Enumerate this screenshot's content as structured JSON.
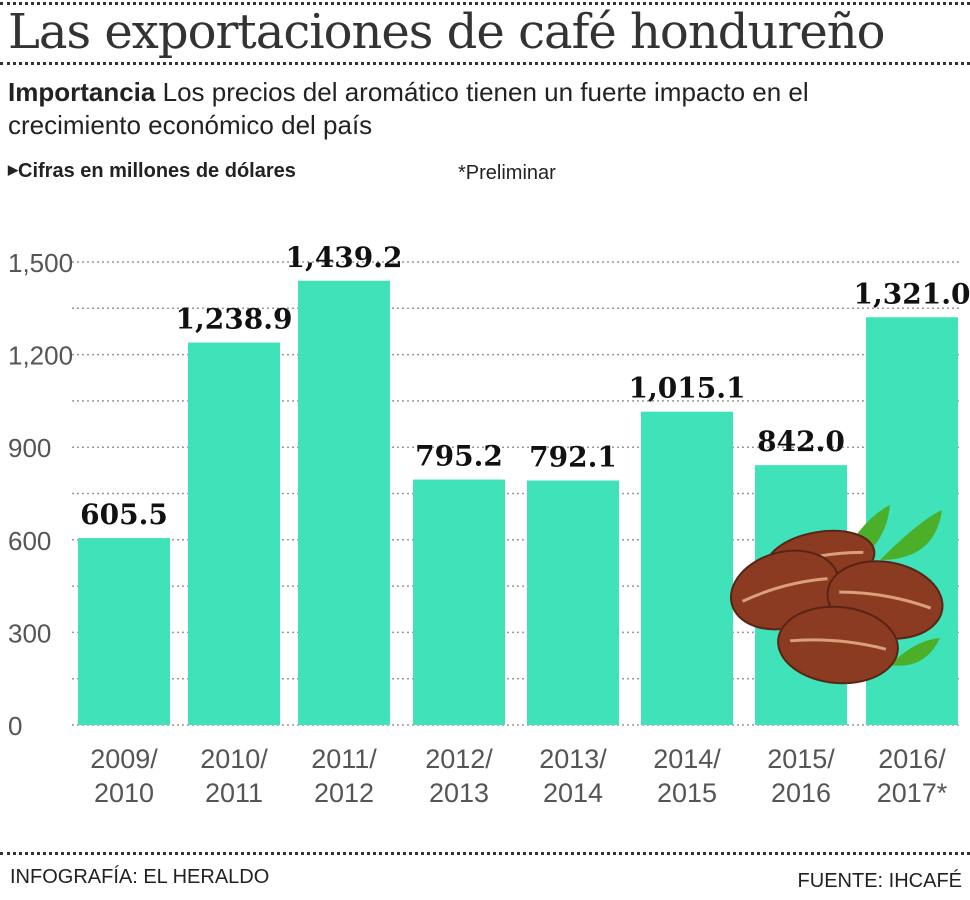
{
  "title": "Las exportaciones de café hondureño",
  "subtitle_bold": "Importancia",
  "subtitle": "Los precios del aromático tienen  un fuerte impacto en el crecimiento económico del país",
  "unit_note": "Cifras en millones de dólares",
  "preliminary_note": "*Preliminar",
  "credit": "INFOGRAFÍA: EL HERALDO",
  "source": "FUENTE: IHCAFÉ",
  "colors": {
    "bar": "#3fe2b9",
    "text": "#222222",
    "axis_text": "#555555"
  },
  "chart_data": {
    "type": "bar",
    "categories": [
      [
        "2009/",
        "2010"
      ],
      [
        "2010/",
        "2011"
      ],
      [
        "2011/",
        "2012"
      ],
      [
        "2012/",
        "2013"
      ],
      [
        "2013/",
        "2014"
      ],
      [
        "2014/",
        "2015"
      ],
      [
        "2015/",
        "2016"
      ],
      [
        "2016/",
        "2017*"
      ]
    ],
    "values": [
      605.5,
      1238.9,
      1439.2,
      795.2,
      792.1,
      1015.1,
      842.0,
      1321.0
    ],
    "data_labels": [
      "605.5",
      "1,238.9",
      "1,439.2",
      "795.2",
      "792.1",
      "1,015.1",
      "842.0",
      "1,321.0"
    ],
    "yticks": [
      0,
      300,
      600,
      900,
      1200,
      1500
    ],
    "ytick_labels": [
      "0",
      "300",
      "600",
      "900",
      "1,200",
      "1,500"
    ],
    "ylim": [
      0,
      1500
    ],
    "grid": true,
    "decoration": "coffee-beans-icon"
  }
}
